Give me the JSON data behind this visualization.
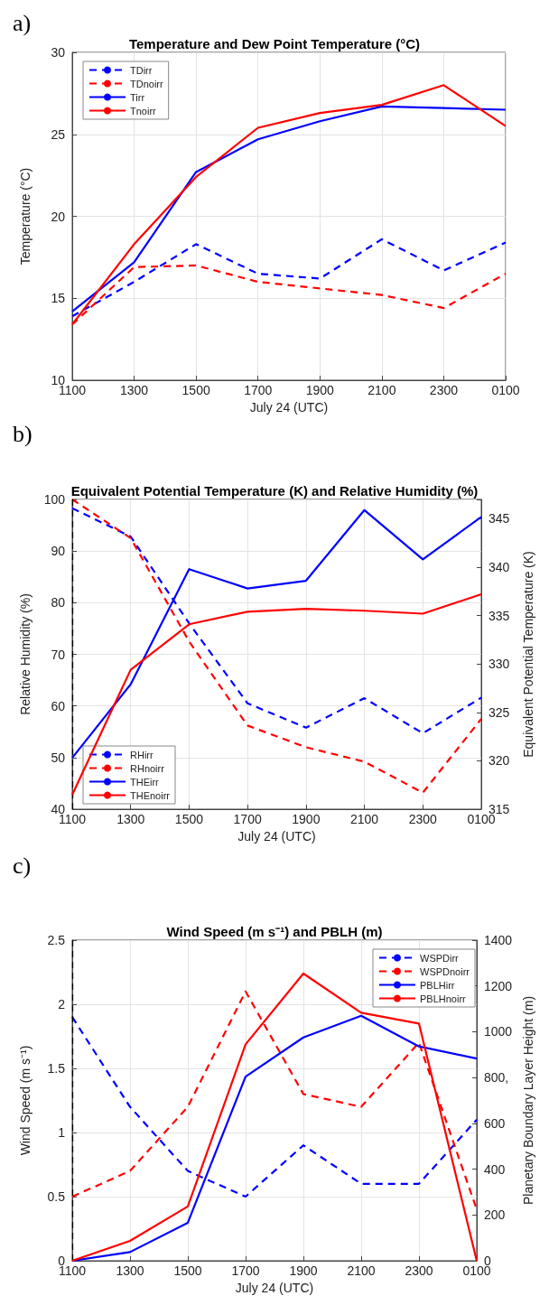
{
  "chart_data": [
    {
      "type": "line",
      "title": "Temperature and Dew Point Temperature (°C)",
      "xlabel": "July 24 (UTC)",
      "ylabel": "Temperature (°C)",
      "annotations": [
        "a)"
      ],
      "categories": [
        "1100",
        "1300",
        "1500",
        "1700",
        "1900",
        "2100",
        "2300",
        "0100"
      ],
      "series": [
        {
          "name": "TDirr",
          "color": "#0000ff",
          "line_style": "dashed",
          "values": [
            13.9,
            16.0,
            18.3,
            16.5,
            16.2,
            18.6,
            16.7,
            18.4
          ]
        },
        {
          "name": "TDnoirr",
          "color": "#ff0000",
          "line_style": "dashed",
          "values": [
            13.4,
            16.9,
            17.0,
            16.0,
            15.6,
            15.2,
            14.4,
            16.5
          ]
        },
        {
          "name": "Tirr",
          "color": "#0000ff",
          "line_style": "solid",
          "values": [
            14.2,
            17.2,
            22.7,
            24.7,
            25.8,
            26.7,
            26.6,
            26.5
          ]
        },
        {
          "name": "Tnoirr",
          "color": "#ff0000",
          "line_style": "solid",
          "values": [
            13.4,
            18.3,
            22.4,
            25.4,
            26.3,
            26.8,
            28.0,
            25.5
          ]
        }
      ],
      "ylim": [
        10,
        30
      ],
      "yticks": [
        10,
        15,
        20,
        25,
        30
      ],
      "grid": true,
      "legend": "top left",
      "marker": "none"
    },
    {
      "type": "line",
      "title": "Equivalent Potential Temperature (K) and Relative Humidity (%)",
      "xlabel": "July 24 (UTC)",
      "ylabel": "Relative Humidity (%)",
      "y2label": "Equivalent Potential Temperature (K)",
      "annotations": [
        "b)"
      ],
      "categories": [
        "1100",
        "1300",
        "1500",
        "1700",
        "1900",
        "2100",
        "2300",
        "0100"
      ],
      "series": [
        {
          "name": "RHirr",
          "color": "#0000ff",
          "line_style": "dashed",
          "values": [
            98.3,
            92.8,
            76,
            60.5,
            55.8,
            61.5,
            54.7,
            61.6
          ]
        },
        {
          "name": "RHnoirr",
          "color": "#ff0000",
          "line_style": "dashed",
          "values": [
            100,
            92.5,
            72.5,
            56.2,
            52,
            49.2,
            43.2,
            57.5
          ]
        },
        {
          "name": "THEirr",
          "color": "#0000ff",
          "line_style": "solid",
          "axis": "y2",
          "values": [
            320.3,
            327.9,
            339.8,
            337.8,
            338.6,
            345.9,
            340.8,
            345.2
          ]
        },
        {
          "name": "THEnoirr",
          "color": "#ff0000",
          "line_style": "solid",
          "axis": "y2",
          "values": [
            316.5,
            329.4,
            334.1,
            335.4,
            335.7,
            335.5,
            335.2,
            337.2
          ]
        }
      ],
      "ylim": [
        40,
        100
      ],
      "yticks": [
        40,
        50,
        60,
        70,
        80,
        90,
        100
      ],
      "y2lim": [
        315,
        347
      ],
      "y2ticks": [
        315,
        320,
        325,
        330,
        335,
        340,
        345
      ],
      "ref_lines": [
        {
          "axis": "x",
          "value": "1100",
          "color": "#000000",
          "line_style": "dashed"
        }
      ],
      "grid": true,
      "legend": "bottom left",
      "marker": "none"
    },
    {
      "type": "line",
      "title": "Wind Speed (m s⁻¹) and PBLH (m)",
      "xlabel": "July 24 (UTC)",
      "ylabel": "Wind Speed (m s⁻¹)",
      "y2label": "Planetary Boundary Layer Height (m)",
      "annotations": [
        "c)"
      ],
      "categories": [
        "1100",
        "1300",
        "1500",
        "1700",
        "1900",
        "2100",
        "2300",
        "0100"
      ],
      "series": [
        {
          "name": "WSPDirr",
          "color": "#0000ff",
          "line_style": "dashed",
          "values": [
            1.9,
            1.2,
            0.7,
            0.5,
            0.9,
            0.6,
            0.6,
            1.1
          ]
        },
        {
          "name": "WSPDnoirr",
          "color": "#ff0000",
          "line_style": "dashed",
          "values": [
            0.5,
            0.7,
            1.2,
            2.1,
            1.3,
            1.2,
            1.7,
            0.4
          ]
        },
        {
          "name": "PBLHirr",
          "color": "#0000ff",
          "line_style": "solid",
          "axis": "y2",
          "values": [
            0,
            38,
            166,
            804,
            975,
            1070,
            936,
            883
          ]
        },
        {
          "name": "PBLHnoirr",
          "color": "#ff0000",
          "line_style": "solid",
          "axis": "y2",
          "values": [
            0,
            87,
            237,
            945,
            1254,
            1083,
            1036,
            0
          ]
        }
      ],
      "ylim": [
        0,
        2.5
      ],
      "yticks": [
        0,
        0.5,
        1,
        1.5,
        2,
        2.5
      ],
      "y2lim": [
        0,
        1400
      ],
      "y2ticks": [
        0,
        200,
        400,
        600,
        {
          "value": 800,
          "label": "800,"
        },
        1000,
        1200,
        1400
      ],
      "ref_lines": [
        {
          "axis": "x",
          "value": "1100",
          "color": "#000000",
          "line_style": "dashed"
        }
      ],
      "grid": true,
      "legend": "top right",
      "marker": "none"
    }
  ]
}
